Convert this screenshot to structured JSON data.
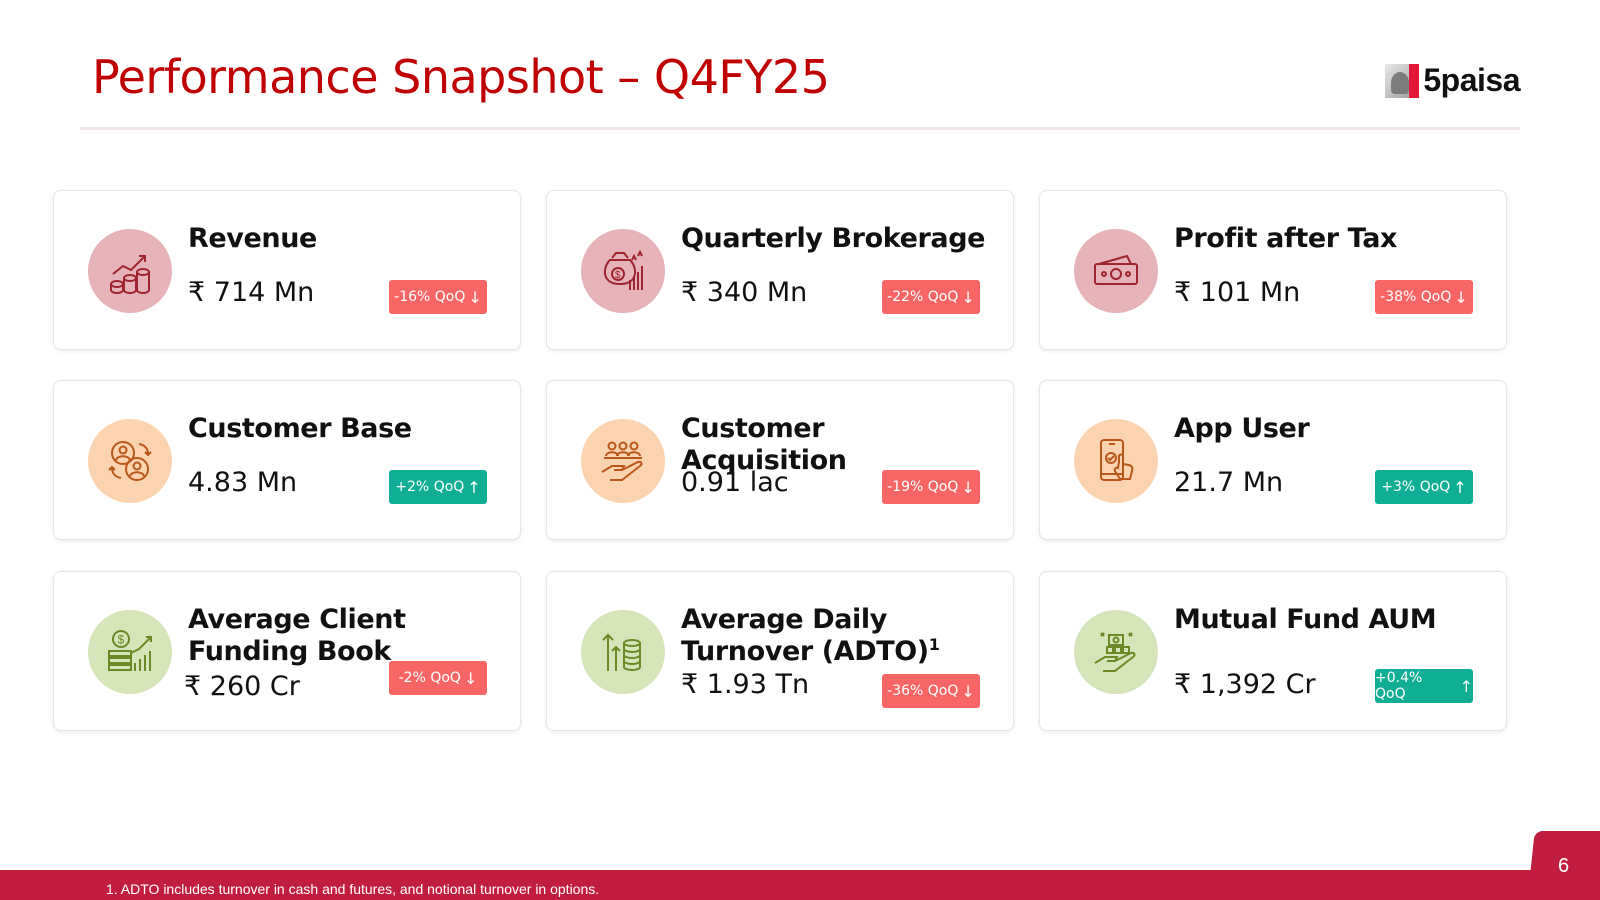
{
  "header": {
    "title": "Performance Snapshot – Q4FY25",
    "logo_text": "5paisa"
  },
  "colors": {
    "title": "#c00000",
    "down_badge": "#f76565",
    "up_badge": "#0fae95",
    "footer": "#c01d3f"
  },
  "cards": [
    {
      "label": "Revenue",
      "value": "₹ 714 Mn",
      "change": "-16% QoQ",
      "direction": "down",
      "icon": "growth-chart-coins-icon"
    },
    {
      "label": "Quarterly Brokerage",
      "value": "₹ 340 Mn",
      "change": "-22% QoQ",
      "direction": "down",
      "icon": "money-bag-chart-icon"
    },
    {
      "label": "Profit after Tax",
      "value": "₹ 101 Mn",
      "change": "-38% QoQ",
      "direction": "down",
      "icon": "cash-banknotes-icon"
    },
    {
      "label": "Customer Base",
      "value": "4.83 Mn",
      "change": "+2% QoQ",
      "direction": "up",
      "icon": "users-exchange-icon"
    },
    {
      "label": "Customer Acquisition",
      "value": "0.91 lac",
      "change": "-19% QoQ",
      "direction": "down",
      "icon": "hand-holding-people-icon"
    },
    {
      "label": "App User",
      "value": "21.7 Mn",
      "change": "+3% QoQ",
      "direction": "up",
      "icon": "mobile-tap-icon"
    },
    {
      "label": "Average Client Funding Book",
      "value": "₹ 260 Cr",
      "change": "-2% QoQ",
      "direction": "down",
      "icon": "dollar-bars-icon"
    },
    {
      "label": "Average Daily Turnover (ADTO)",
      "label_sup": "1",
      "value": "₹ 1.93 Tn",
      "change": "-36% QoQ",
      "direction": "down",
      "icon": "arrow-up-coins-icon"
    },
    {
      "label": "Mutual Fund AUM",
      "value": "₹ 1,392 Cr",
      "change": "+0.4% QoQ",
      "direction": "up",
      "icon": "hand-holding-money-icon"
    }
  ],
  "footer": {
    "note": "1. ADTO includes turnover in cash and futures, and notional turnover in options.",
    "page_number": "6"
  }
}
